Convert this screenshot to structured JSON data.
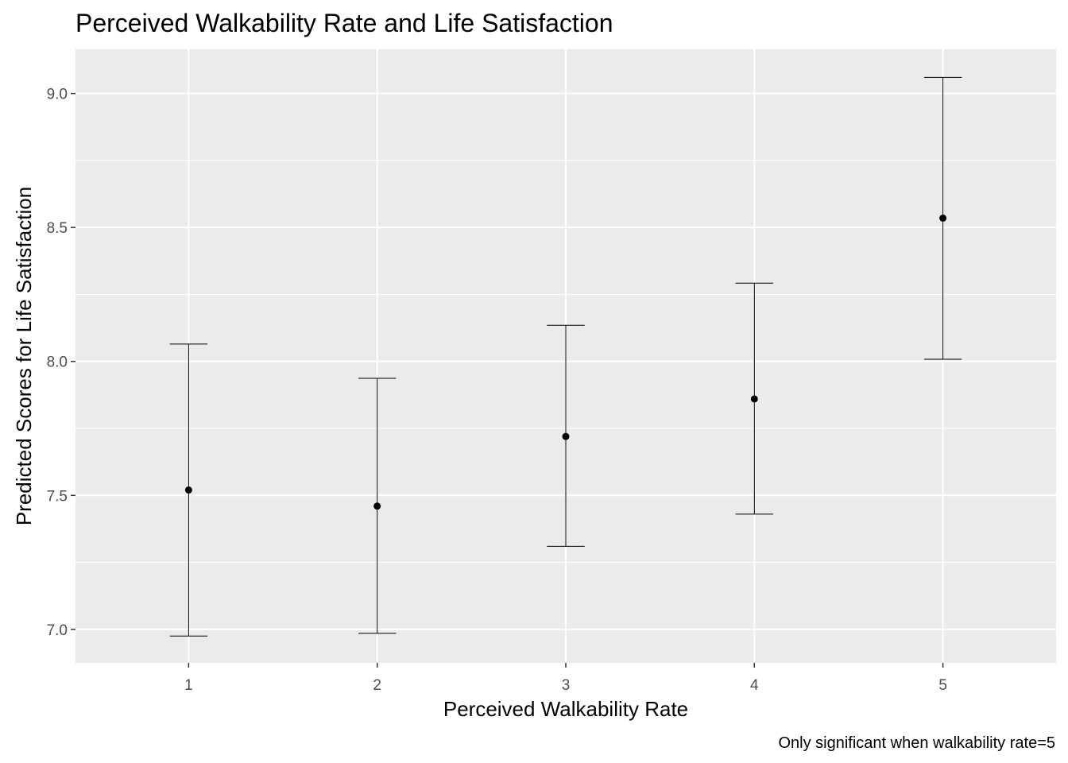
{
  "chart_data": {
    "type": "scatter",
    "title": "Perceived Walkability Rate and Life Satisfaction",
    "xlabel": "Perceived Walkability Rate",
    "ylabel": "Predicted Scores for Life Satisfaction",
    "caption": "Only significant when walkability rate=5",
    "x_ticks": [
      "1",
      "2",
      "3",
      "4",
      "5"
    ],
    "y_ticks": [
      "7.0",
      "7.5",
      "8.0",
      "8.5",
      "9.0"
    ],
    "xlim": [
      0.4,
      5.6
    ],
    "ylim": [
      6.875,
      9.165
    ],
    "grid": true,
    "points": [
      {
        "x": 1,
        "y": 7.52,
        "ymin": 6.975,
        "ymax": 8.065
      },
      {
        "x": 2,
        "y": 7.46,
        "ymin": 6.985,
        "ymax": 7.937
      },
      {
        "x": 3,
        "y": 7.72,
        "ymin": 7.31,
        "ymax": 8.135
      },
      {
        "x": 4,
        "y": 7.86,
        "ymin": 7.43,
        "ymax": 8.292
      },
      {
        "x": 5,
        "y": 8.535,
        "ymin": 8.008,
        "ymax": 9.06
      }
    ],
    "colors": {
      "panel": "#ebebeb",
      "grid": "#ffffff",
      "point": "#000000",
      "errorbar": "#000000",
      "tick": "#4d4d4d",
      "tickmark": "#333333"
    }
  }
}
